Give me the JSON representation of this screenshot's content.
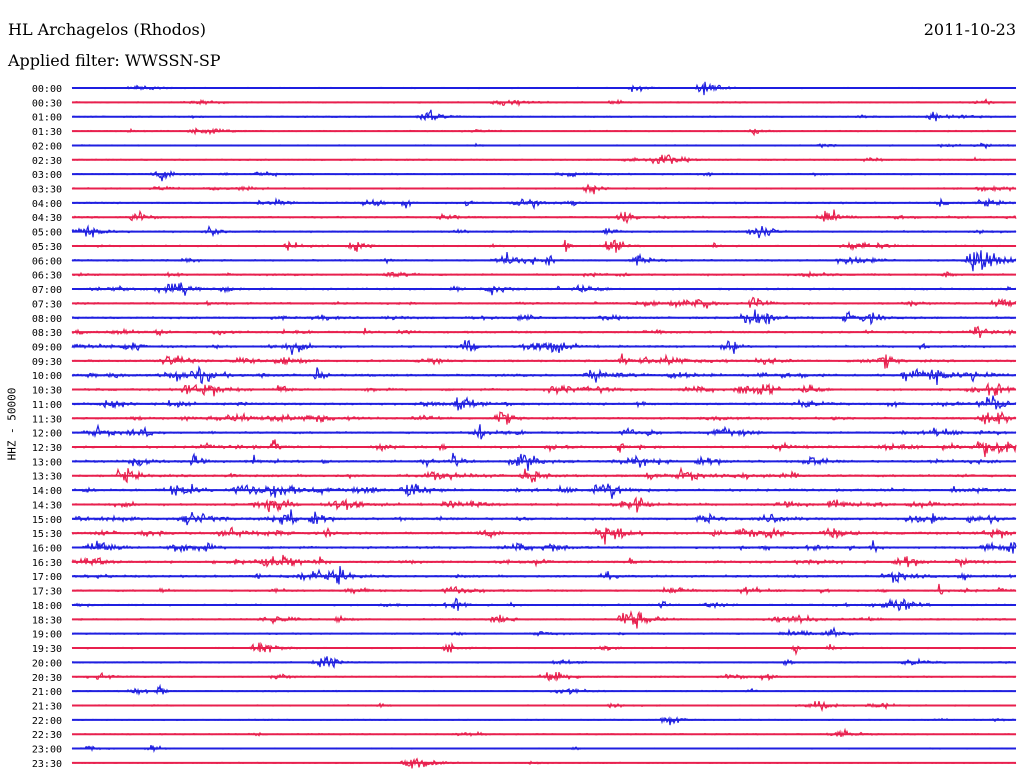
{
  "header": {
    "station": "HL Archagelos (Rhodos)",
    "date": "2011-10-23",
    "filter": "Applied filter: WWSSN-SP"
  },
  "chart_data": {
    "type": "line",
    "title": "HL Archagelos (Rhodos)",
    "ylabel": "HHZ - 50000",
    "row_labels": [
      "00:00",
      "00:30",
      "01:00",
      "01:30",
      "02:00",
      "02:30",
      "03:00",
      "03:30",
      "04:00",
      "04:30",
      "05:00",
      "05:30",
      "06:00",
      "06:30",
      "07:00",
      "07:30",
      "08:00",
      "08:30",
      "09:00",
      "09:30",
      "10:00",
      "10:30",
      "11:00",
      "11:30",
      "12:00",
      "12:30",
      "13:00",
      "13:30",
      "14:00",
      "14:30",
      "15:00",
      "15:30",
      "16:00",
      "16:30",
      "17:00",
      "17:30",
      "18:00",
      "18:30",
      "19:00",
      "19:30",
      "20:00",
      "20:30",
      "21:00",
      "21:30",
      "22:00",
      "22:30",
      "23:00",
      "23:30"
    ],
    "trace_colors": [
      "#1f1fe0",
      "#e8204e"
    ],
    "activity_level": [
      0.08,
      0.1,
      0.12,
      0.1,
      0.1,
      0.14,
      0.14,
      0.18,
      0.22,
      0.2,
      0.22,
      0.22,
      0.24,
      0.26,
      0.28,
      0.3,
      0.34,
      0.36,
      0.38,
      0.4,
      0.44,
      0.42,
      0.4,
      0.34,
      0.4,
      0.44,
      0.44,
      0.42,
      0.46,
      0.46,
      0.46,
      0.46,
      0.44,
      0.42,
      0.36,
      0.3,
      0.26,
      0.22,
      0.16,
      0.14,
      0.14,
      0.12,
      0.1,
      0.12,
      0.08,
      0.07,
      0.07,
      0.06
    ],
    "grid": false
  }
}
